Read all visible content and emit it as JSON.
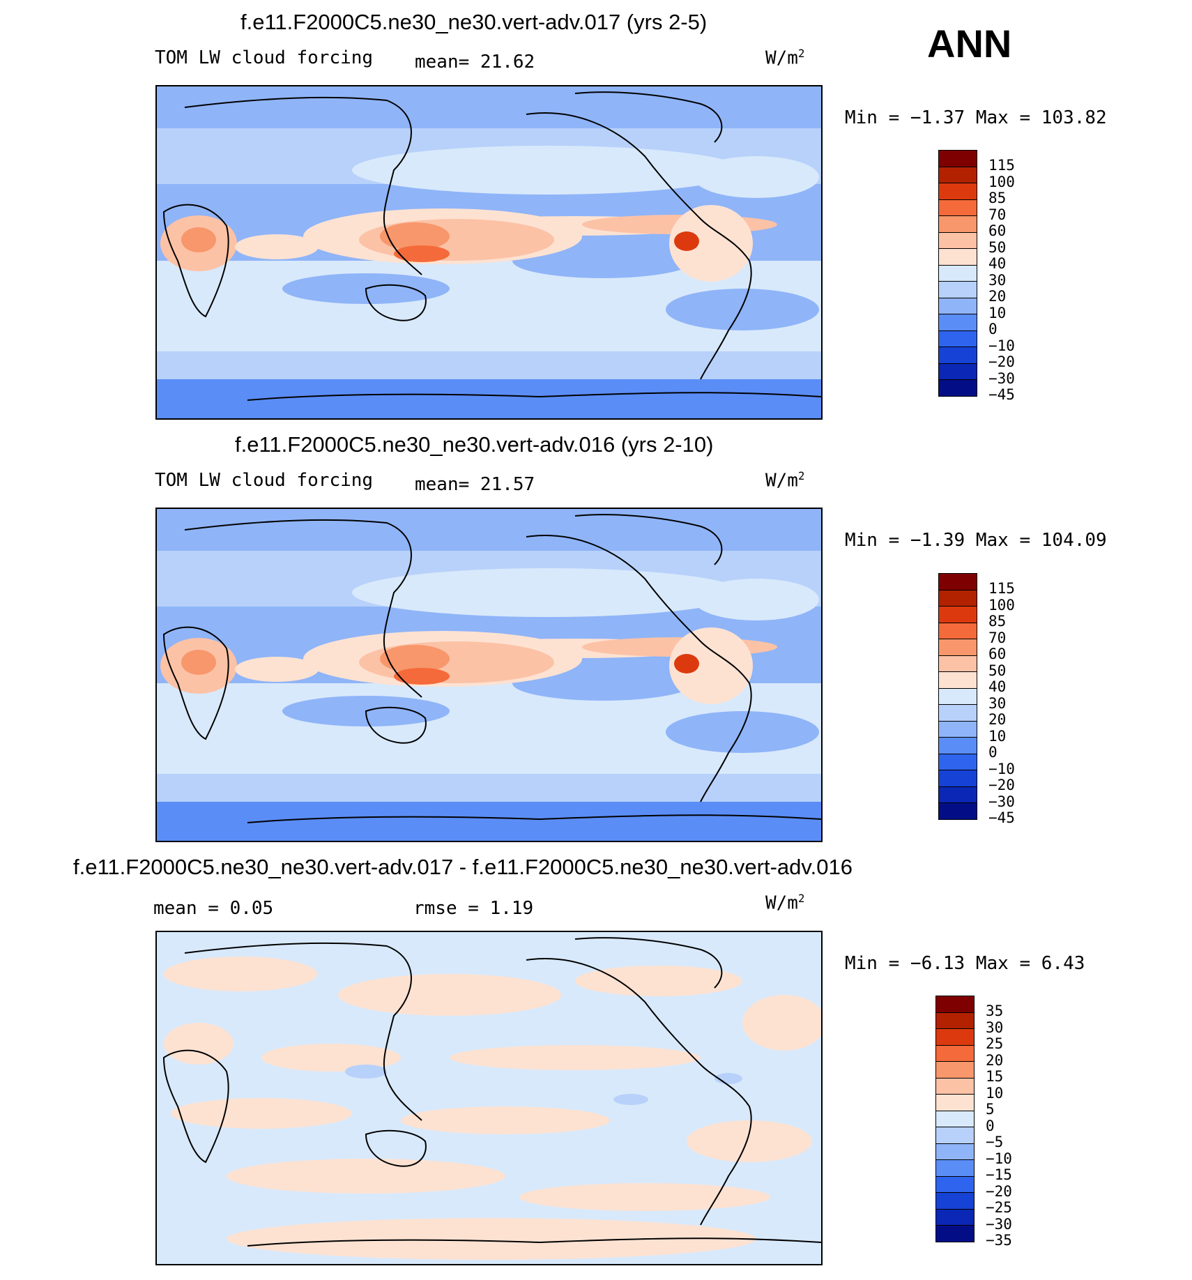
{
  "season": "ANN",
  "units": "W/m",
  "units_sup": "2",
  "panels": [
    {
      "title": "f.e11.F2000C5.ne30_ne30.vert-adv.017 (yrs 2-5)",
      "left_label": "TOM LW cloud forcing",
      "mid_label": "mean=   21.62",
      "minmax": "Min =  −1.37 Max = 103.82",
      "colorbar": {
        "labels": [
          "115",
          "100",
          "85",
          "70",
          "60",
          "50",
          "40",
          "30",
          "20",
          "10",
          "0",
          "−10",
          "−20",
          "−30",
          "−45"
        ],
        "colors": [
          "#7f0000",
          "#b22200",
          "#dc3a0e",
          "#f56a3a",
          "#f7976b",
          "#fcc2a6",
          "#fde2d2",
          "#d8e9fb",
          "#b7d1fa",
          "#8fb4f8",
          "#5b8df6",
          "#2f64ee",
          "#1642d6",
          "#0a27b5",
          "#030e86"
        ]
      }
    },
    {
      "title": "f.e11.F2000C5.ne30_ne30.vert-adv.016 (yrs 2-10)",
      "left_label": "TOM LW cloud forcing",
      "mid_label": "mean=   21.57",
      "minmax": "Min =  −1.39 Max = 104.09",
      "colorbar": {
        "labels": [
          "115",
          "100",
          "85",
          "70",
          "60",
          "50",
          "40",
          "30",
          "20",
          "10",
          "0",
          "−10",
          "−20",
          "−30",
          "−45"
        ],
        "colors": [
          "#7f0000",
          "#b22200",
          "#dc3a0e",
          "#f56a3a",
          "#f7976b",
          "#fcc2a6",
          "#fde2d2",
          "#d8e9fb",
          "#b7d1fa",
          "#8fb4f8",
          "#5b8df6",
          "#2f64ee",
          "#1642d6",
          "#0a27b5",
          "#030e86"
        ]
      }
    },
    {
      "title": "f.e11.F2000C5.ne30_ne30.vert-adv.017 - f.e11.F2000C5.ne30_ne30.vert-adv.016",
      "left_label": "mean =    0.05",
      "mid_label": "rmse =    1.19",
      "minmax": "Min =  −6.13 Max =   6.43",
      "colorbar": {
        "labels": [
          "35",
          "30",
          "25",
          "20",
          "15",
          "10",
          "5",
          "0",
          "−5",
          "−10",
          "−15",
          "−20",
          "−25",
          "−30",
          "−35"
        ],
        "colors": [
          "#7f0000",
          "#b22200",
          "#dc3a0e",
          "#f56a3a",
          "#f7976b",
          "#fcc2a6",
          "#fde2d2",
          "#d8e9fb",
          "#b7d1fa",
          "#8fb4f8",
          "#5b8df6",
          "#2f64ee",
          "#1642d6",
          "#0a27b5",
          "#030e86"
        ]
      }
    }
  ]
}
